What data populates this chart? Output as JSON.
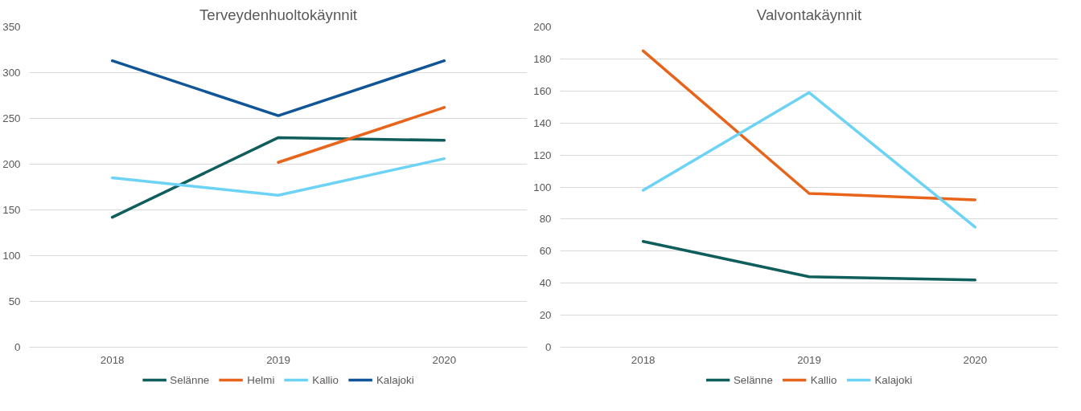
{
  "chart_data": [
    {
      "type": "line",
      "title": "Terveydenhuoltokäynnit",
      "categories": [
        "2018",
        "2019",
        "2020"
      ],
      "ylim": [
        0,
        350
      ],
      "yticks": [
        0,
        50,
        100,
        150,
        200,
        250,
        300,
        350
      ],
      "grid": "y",
      "legend": "bottom",
      "series": [
        {
          "name": "Selänne",
          "color": "#0f5e5c",
          "values": [
            142,
            229,
            226
          ]
        },
        {
          "name": "Helmi",
          "color": "#e8641b",
          "values": [
            null,
            202,
            262
          ]
        },
        {
          "name": "Kallio",
          "color": "#6dd3f6",
          "values": [
            185,
            166,
            206
          ]
        },
        {
          "name": "Kalajoki",
          "color": "#0f5597",
          "values": [
            313,
            253,
            313
          ]
        }
      ]
    },
    {
      "type": "line",
      "title": "Valvontakäynnit",
      "categories": [
        "2018",
        "2019",
        "2020"
      ],
      "ylim": [
        0,
        200
      ],
      "yticks": [
        0,
        20,
        40,
        60,
        80,
        100,
        120,
        140,
        160,
        180,
        200
      ],
      "grid": "y",
      "legend": "bottom",
      "series": [
        {
          "name": "Selänne",
          "color": "#0f5e5c",
          "values": [
            66,
            44,
            42
          ]
        },
        {
          "name": "Kallio",
          "color": "#e8641b",
          "values": [
            185,
            96,
            92
          ]
        },
        {
          "name": "Kalajoki",
          "color": "#6dd3f6",
          "values": [
            98,
            159,
            75
          ]
        }
      ]
    }
  ]
}
